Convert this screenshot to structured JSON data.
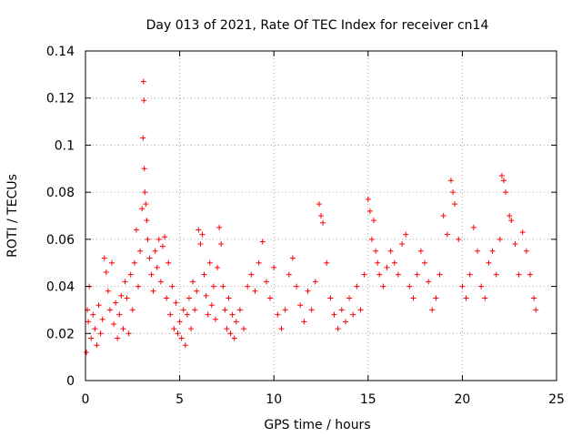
{
  "chart_data": {
    "type": "scatter",
    "title": "Day 013 of 2021, Rate Of TEC Index for receiver cn14",
    "xlabel": "GPS time / hours",
    "ylabel": "ROTI / TECUs",
    "xlim": [
      0,
      25
    ],
    "ylim": [
      0,
      0.14
    ],
    "x_ticks": [
      0,
      5,
      10,
      15,
      20,
      25
    ],
    "x_tick_labels": [
      "0",
      "5",
      "10",
      "15",
      "20",
      "25"
    ],
    "y_ticks": [
      0,
      0.02,
      0.04,
      0.06,
      0.08,
      0.1,
      0.12,
      0.14
    ],
    "y_tick_labels": [
      "0",
      "0.02",
      "0.04",
      "0.06",
      "0.08",
      "0.1",
      "0.12",
      "0.14"
    ],
    "grid": true,
    "marker": "plus",
    "color": "#ff0000",
    "series": [
      {
        "name": "ROTI",
        "points": [
          [
            0.05,
            0.012
          ],
          [
            0.1,
            0.03
          ],
          [
            0.15,
            0.025
          ],
          [
            0.2,
            0.04
          ],
          [
            0.3,
            0.018
          ],
          [
            0.4,
            0.028
          ],
          [
            0.5,
            0.022
          ],
          [
            0.6,
            0.015
          ],
          [
            0.7,
            0.032
          ],
          [
            0.8,
            0.02
          ],
          [
            0.9,
            0.026
          ],
          [
            1.0,
            0.052
          ],
          [
            1.1,
            0.046
          ],
          [
            1.2,
            0.038
          ],
          [
            1.3,
            0.03
          ],
          [
            1.4,
            0.05
          ],
          [
            1.5,
            0.024
          ],
          [
            1.6,
            0.033
          ],
          [
            1.7,
            0.018
          ],
          [
            1.8,
            0.028
          ],
          [
            1.9,
            0.036
          ],
          [
            2.0,
            0.022
          ],
          [
            2.1,
            0.042
          ],
          [
            2.2,
            0.035
          ],
          [
            2.3,
            0.02
          ],
          [
            2.4,
            0.045
          ],
          [
            2.5,
            0.03
          ],
          [
            2.6,
            0.05
          ],
          [
            2.7,
            0.064
          ],
          [
            2.8,
            0.04
          ],
          [
            2.9,
            0.055
          ],
          [
            3.0,
            0.073
          ],
          [
            3.05,
            0.103
          ],
          [
            3.08,
            0.127
          ],
          [
            3.1,
            0.119
          ],
          [
            3.12,
            0.09
          ],
          [
            3.15,
            0.08
          ],
          [
            3.2,
            0.075
          ],
          [
            3.25,
            0.068
          ],
          [
            3.3,
            0.06
          ],
          [
            3.4,
            0.052
          ],
          [
            3.5,
            0.045
          ],
          [
            3.6,
            0.038
          ],
          [
            3.7,
            0.055
          ],
          [
            3.8,
            0.048
          ],
          [
            3.9,
            0.06
          ],
          [
            4.0,
            0.042
          ],
          [
            4.1,
            0.057
          ],
          [
            4.2,
            0.061
          ],
          [
            4.3,
            0.035
          ],
          [
            4.4,
            0.05
          ],
          [
            4.5,
            0.028
          ],
          [
            4.6,
            0.04
          ],
          [
            4.7,
            0.022
          ],
          [
            4.8,
            0.033
          ],
          [
            4.9,
            0.02
          ],
          [
            5.0,
            0.025
          ],
          [
            5.1,
            0.018
          ],
          [
            5.2,
            0.03
          ],
          [
            5.3,
            0.015
          ],
          [
            5.4,
            0.028
          ],
          [
            5.5,
            0.035
          ],
          [
            5.6,
            0.022
          ],
          [
            5.7,
            0.042
          ],
          [
            5.8,
            0.03
          ],
          [
            5.9,
            0.038
          ],
          [
            6.0,
            0.064
          ],
          [
            6.1,
            0.058
          ],
          [
            6.2,
            0.062
          ],
          [
            6.3,
            0.045
          ],
          [
            6.4,
            0.036
          ],
          [
            6.5,
            0.028
          ],
          [
            6.6,
            0.05
          ],
          [
            6.7,
            0.032
          ],
          [
            6.8,
            0.04
          ],
          [
            6.9,
            0.026
          ],
          [
            7.0,
            0.048
          ],
          [
            7.1,
            0.065
          ],
          [
            7.2,
            0.058
          ],
          [
            7.3,
            0.04
          ],
          [
            7.4,
            0.03
          ],
          [
            7.5,
            0.022
          ],
          [
            7.6,
            0.035
          ],
          [
            7.7,
            0.02
          ],
          [
            7.8,
            0.028
          ],
          [
            7.9,
            0.018
          ],
          [
            8.0,
            0.025
          ],
          [
            8.2,
            0.03
          ],
          [
            8.4,
            0.022
          ],
          [
            8.6,
            0.04
          ],
          [
            8.8,
            0.045
          ],
          [
            9.0,
            0.038
          ],
          [
            9.2,
            0.05
          ],
          [
            9.4,
            0.059
          ],
          [
            9.6,
            0.042
          ],
          [
            9.8,
            0.035
          ],
          [
            10.0,
            0.048
          ],
          [
            10.2,
            0.028
          ],
          [
            10.4,
            0.022
          ],
          [
            10.6,
            0.03
          ],
          [
            10.8,
            0.045
          ],
          [
            11.0,
            0.052
          ],
          [
            11.2,
            0.04
          ],
          [
            11.4,
            0.032
          ],
          [
            11.6,
            0.025
          ],
          [
            11.8,
            0.038
          ],
          [
            12.0,
            0.03
          ],
          [
            12.2,
            0.042
          ],
          [
            12.4,
            0.075
          ],
          [
            12.5,
            0.07
          ],
          [
            12.6,
            0.067
          ],
          [
            12.8,
            0.05
          ],
          [
            13.0,
            0.035
          ],
          [
            13.2,
            0.028
          ],
          [
            13.4,
            0.022
          ],
          [
            13.6,
            0.03
          ],
          [
            13.8,
            0.025
          ],
          [
            14.0,
            0.035
          ],
          [
            14.2,
            0.028
          ],
          [
            14.4,
            0.04
          ],
          [
            14.6,
            0.03
          ],
          [
            14.8,
            0.045
          ],
          [
            15.0,
            0.077
          ],
          [
            15.1,
            0.072
          ],
          [
            15.2,
            0.06
          ],
          [
            15.3,
            0.068
          ],
          [
            15.4,
            0.055
          ],
          [
            15.5,
            0.05
          ],
          [
            15.6,
            0.045
          ],
          [
            15.8,
            0.04
          ],
          [
            16.0,
            0.048
          ],
          [
            16.2,
            0.055
          ],
          [
            16.4,
            0.05
          ],
          [
            16.6,
            0.045
          ],
          [
            16.8,
            0.058
          ],
          [
            17.0,
            0.062
          ],
          [
            17.2,
            0.04
          ],
          [
            17.4,
            0.035
          ],
          [
            17.6,
            0.045
          ],
          [
            17.8,
            0.055
          ],
          [
            18.0,
            0.05
          ],
          [
            18.2,
            0.042
          ],
          [
            18.4,
            0.03
          ],
          [
            18.6,
            0.035
          ],
          [
            18.8,
            0.045
          ],
          [
            19.0,
            0.07
          ],
          [
            19.2,
            0.062
          ],
          [
            19.4,
            0.085
          ],
          [
            19.5,
            0.08
          ],
          [
            19.6,
            0.075
          ],
          [
            19.8,
            0.06
          ],
          [
            20.0,
            0.04
          ],
          [
            20.2,
            0.035
          ],
          [
            20.4,
            0.045
          ],
          [
            20.6,
            0.065
          ],
          [
            20.8,
            0.055
          ],
          [
            21.0,
            0.04
          ],
          [
            21.2,
            0.035
          ],
          [
            21.4,
            0.05
          ],
          [
            21.6,
            0.055
          ],
          [
            21.8,
            0.045
          ],
          [
            22.0,
            0.06
          ],
          [
            22.1,
            0.087
          ],
          [
            22.2,
            0.085
          ],
          [
            22.3,
            0.08
          ],
          [
            22.5,
            0.07
          ],
          [
            22.6,
            0.068
          ],
          [
            22.8,
            0.058
          ],
          [
            23.0,
            0.045
          ],
          [
            23.2,
            0.063
          ],
          [
            23.4,
            0.055
          ],
          [
            23.6,
            0.045
          ],
          [
            23.8,
            0.035
          ],
          [
            23.9,
            0.03
          ]
        ]
      }
    ]
  }
}
